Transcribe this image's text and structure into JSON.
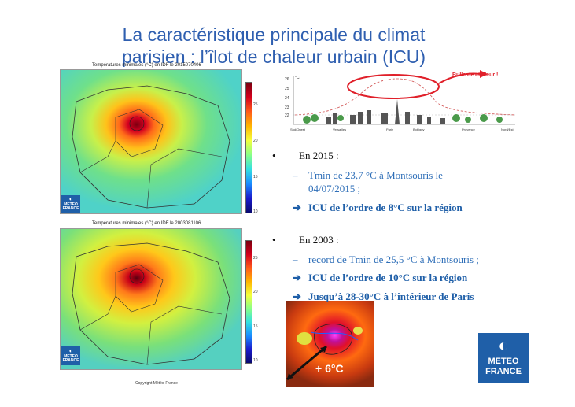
{
  "title_line1": "La caractéristique principale du climat",
  "title_line2": "parisien : l’îlot de chaleur urbain (ICU)",
  "map1": {
    "label": "Températures minimales (°C) en IDF le 2015070406",
    "ticks": [
      "25",
      "20",
      "15",
      "10"
    ]
  },
  "map2": {
    "label": "Températures minimales (°C) en IDF le 2003081106",
    "ticks": [
      "25",
      "20",
      "15",
      "10"
    ]
  },
  "logo": {
    "line1": "METEO",
    "line2": "FRANCE"
  },
  "profile": {
    "bubble_label": "Bulle de chaleur !",
    "y_ticks": [
      "26",
      "25",
      "24",
      "23",
      "22"
    ],
    "y_unit": "°C",
    "x_labels": [
      "Sud/Ouest",
      "Versailles",
      "Paris",
      "Bobigny",
      "Provence",
      "Nord/Est"
    ]
  },
  "bullets": {
    "b2015": "En 2015 :",
    "b2015_sub1a": "Tmin de 23,7 °C à Montsouris le",
    "b2015_sub1b": "04/07/2015 ;",
    "b2015_sub2": "ICU de l’ordre de 8°C sur la région",
    "b2003": "En 2003 :",
    "b2003_sub1": "record de Tmin de 25,5 °C à Montsouris ;",
    "b2003_sub2": "ICU de l’ordre de 10°C sur la région",
    "b2003_sub3": "Jusqu’à 28-30°C à l’intérieur de Paris"
  },
  "inset_label": "+ 6°C",
  "copyright": "Copyright Météo-France",
  "big_logo": {
    "line1": "METEO",
    "line2": "FRANCE"
  }
}
